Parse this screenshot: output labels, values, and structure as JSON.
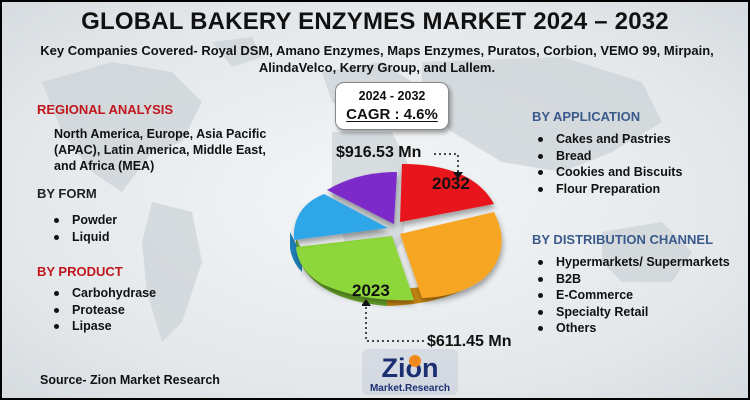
{
  "title": "GLOBAL BAKERY ENZYMES MARKET 2024 – 2032",
  "subtitle": "Key Companies Covered- Royal DSM, Amano Enzymes, Maps Enzymes, Puratos, Corbion, VEMO 99, Mirpain, AlindaVelco, Kerry Group, and Lallem.",
  "regional": {
    "title": "REGIONAL ANALYSIS",
    "text": "North America, Europe, Asia Pacific (APAC), Latin America, Middle East, and Africa (MEA)"
  },
  "by_form": {
    "title": "BY FORM",
    "items": [
      "Powder",
      "Liquid"
    ]
  },
  "by_product": {
    "title": "BY PRODUCT",
    "items": [
      "Carbohydrase",
      "Protease",
      "Lipase"
    ]
  },
  "by_application": {
    "title": "BY APPLICATION",
    "items": [
      "Cakes and Pastries",
      "Bread",
      "Cookies and Biscuits",
      "Flour Preparation"
    ]
  },
  "by_distribution": {
    "title": "BY DISTRIBUTION CHANNEL",
    "items": [
      "Hypermarkets/ Supermarkets",
      "B2B",
      "E-Commerce",
      "Specialty Retail",
      "Others"
    ]
  },
  "cagr": {
    "range": "2024 - 2032",
    "value": "CAGR : 4.6%"
  },
  "values": {
    "v2032": "$916.53 Mn",
    "v2023": "$611.45 Mn",
    "y2032": "2032",
    "y2023": "2023"
  },
  "source": "Source- Zion Market Research",
  "logo": {
    "name": "Zion",
    "tagline": "Market.Research"
  },
  "colors": {
    "red": "#e8161b",
    "orange": "#f6a623",
    "green": "#8dd63a",
    "blue": "#2fa6e8",
    "purple": "#7b2cc9",
    "title_red": "#c0161c",
    "title_blue": "#3a5a8c"
  }
}
